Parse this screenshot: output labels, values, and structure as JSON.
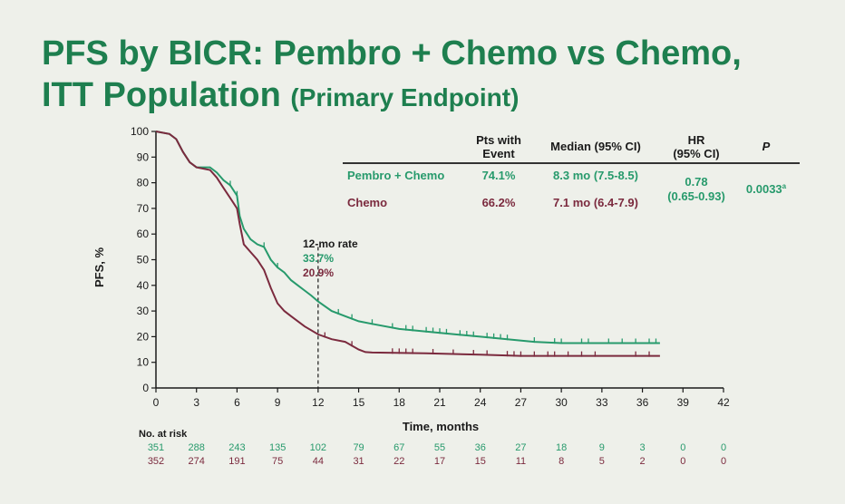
{
  "slide": {
    "title_line1": "PFS by BICR: Pembro + Chemo vs Chemo,",
    "title_line2_main": "ITT Population",
    "title_line2_sub": "(Primary Endpoint)"
  },
  "colors": {
    "pembro": "#279a6c",
    "chemo": "#7b2a3e",
    "title": "#1e7f4f",
    "text": "#1a1a1a"
  },
  "table": {
    "headers": {
      "pts": [
        "Pts with",
        "Event"
      ],
      "median": "Median (95% CI)",
      "hr": [
        "HR",
        "(95% CI)"
      ],
      "p": "P"
    },
    "rows": [
      {
        "arm": "Pembro + Chemo",
        "pts": "74.1%",
        "median": "8.3 mo (7.5-8.5)"
      },
      {
        "arm": "Chemo",
        "pts": "66.2%",
        "median": "7.1 mo (6.4-7.9)"
      }
    ],
    "hr": [
      "0.78",
      "(0.65-0.93)"
    ],
    "p": "0.0033",
    "p_sup": "a"
  },
  "annotation": {
    "label": "12-mo rate",
    "pembro": "33.7%",
    "chemo": "20.9%"
  },
  "risk_table": {
    "label": "No. at risk",
    "pembro": [
      "351",
      "288",
      "243",
      "135",
      "102",
      "79",
      "67",
      "55",
      "36",
      "27",
      "18",
      "9",
      "3",
      "0",
      "0"
    ],
    "chemo": [
      "352",
      "274",
      "191",
      "75",
      "44",
      "31",
      "22",
      "17",
      "15",
      "11",
      "8",
      "5",
      "2",
      "0",
      "0"
    ]
  },
  "chart_data": {
    "type": "line",
    "xlabel": "Time, months",
    "ylabel": "PFS, %",
    "xlim": [
      0,
      42
    ],
    "ylim": [
      0,
      100
    ],
    "xticks": [
      0,
      3,
      6,
      9,
      12,
      15,
      18,
      21,
      24,
      27,
      30,
      33,
      36,
      39,
      42
    ],
    "yticks": [
      0,
      10,
      20,
      30,
      40,
      50,
      60,
      70,
      80,
      90,
      100
    ],
    "reference_line_x": 12,
    "series": [
      {
        "name": "Pembro + Chemo",
        "points": [
          [
            0,
            100
          ],
          [
            1,
            99
          ],
          [
            1.5,
            97
          ],
          [
            2,
            92
          ],
          [
            2.5,
            88
          ],
          [
            3,
            86
          ],
          [
            4,
            86
          ],
          [
            4.5,
            84
          ],
          [
            5,
            81
          ],
          [
            5.5,
            79
          ],
          [
            6,
            75
          ],
          [
            6.2,
            67
          ],
          [
            6.5,
            62
          ],
          [
            7,
            58
          ],
          [
            7.5,
            56
          ],
          [
            8,
            55
          ],
          [
            8.5,
            50
          ],
          [
            9,
            47
          ],
          [
            9.5,
            45
          ],
          [
            10,
            42
          ],
          [
            10.5,
            40
          ],
          [
            11,
            38
          ],
          [
            11.5,
            36
          ],
          [
            12,
            33.7
          ],
          [
            13,
            30
          ],
          [
            14,
            28
          ],
          [
            15,
            26
          ],
          [
            16,
            25
          ],
          [
            18,
            23
          ],
          [
            20,
            22
          ],
          [
            22,
            21
          ],
          [
            24,
            20
          ],
          [
            26,
            19
          ],
          [
            28,
            18
          ],
          [
            30,
            17.5
          ],
          [
            33,
            17.5
          ],
          [
            37.3,
            17.5
          ]
        ],
        "censored": [
          5.5,
          6,
          8,
          9,
          13.5,
          14.5,
          16,
          17.5,
          18.5,
          19,
          20,
          20.5,
          21,
          21.5,
          22.5,
          23,
          23.5,
          24.5,
          25,
          25.5,
          26,
          28,
          29.5,
          30,
          31.5,
          32,
          33.5,
          34.5,
          35.5,
          36.5,
          37
        ]
      },
      {
        "name": "Chemo",
        "points": [
          [
            0,
            100
          ],
          [
            1,
            99
          ],
          [
            1.5,
            97
          ],
          [
            2,
            92
          ],
          [
            2.5,
            88
          ],
          [
            3,
            86
          ],
          [
            4,
            85
          ],
          [
            4.5,
            82
          ],
          [
            5,
            78
          ],
          [
            5.5,
            74
          ],
          [
            6,
            70
          ],
          [
            6.2,
            64
          ],
          [
            6.5,
            56
          ],
          [
            7,
            53
          ],
          [
            7.5,
            50
          ],
          [
            8,
            46
          ],
          [
            8.5,
            39
          ],
          [
            9,
            33
          ],
          [
            9.5,
            30
          ],
          [
            10,
            28
          ],
          [
            11,
            24
          ],
          [
            12,
            20.9
          ],
          [
            13,
            19
          ],
          [
            14,
            18
          ],
          [
            15,
            15
          ],
          [
            15.5,
            14
          ],
          [
            16,
            13.8
          ],
          [
            20,
            13.5
          ],
          [
            24,
            13
          ],
          [
            27,
            12.5
          ],
          [
            37.3,
            12.5
          ]
        ],
        "censored": [
          12.5,
          14.5,
          17.5,
          18,
          18.5,
          19,
          20.5,
          22,
          23.5,
          24.5,
          26,
          26.5,
          27,
          28,
          29,
          29.5,
          30.5,
          31.5,
          32.5,
          35.5,
          36.5
        ]
      }
    ]
  }
}
